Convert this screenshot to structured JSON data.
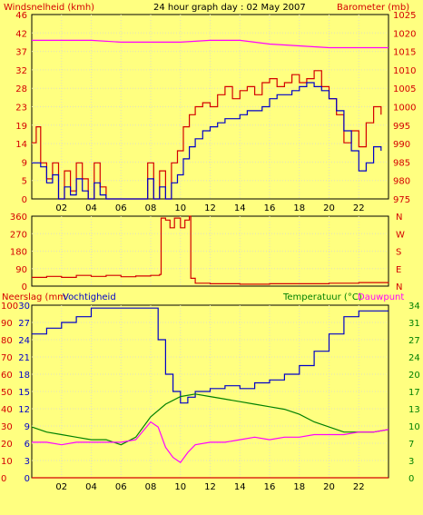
{
  "header": {
    "left_label": "Windsnelheid (kmh)",
    "title": "24 hour graph day : 02 May 2007",
    "right_label": "Barometer (mb)"
  },
  "colors": {
    "background": "#ffff80",
    "frame": "#000000",
    "grid": "#e0e0c0",
    "red": "#d40000",
    "blue": "#0000c8",
    "magenta": "#ff00ff",
    "green": "#008000",
    "frame_bg": "#ffff80"
  },
  "chart_data": [
    {
      "type": "line",
      "title": "24 hour graph day : 02 May 2007",
      "x_tick_labels": [
        "02",
        "04",
        "06",
        "08",
        "10",
        "12",
        "14",
        "16",
        "18",
        "20",
        "22"
      ],
      "x_range_hours": [
        0,
        24
      ],
      "grid": true,
      "left_axis": {
        "label": "Windsnelheid (kmh)",
        "ticks": [
          "0",
          "5",
          "9",
          "14",
          "19",
          "23",
          "28",
          "32",
          "37",
          "42",
          "46"
        ],
        "range": [
          0,
          46
        ]
      },
      "right_axis": {
        "label": "Barometer (mb)",
        "ticks": [
          "975",
          "980",
          "985",
          "990",
          "995",
          "1000",
          "1005",
          "1010",
          "1015",
          "1020",
          "1025"
        ],
        "range": [
          975,
          1025
        ]
      },
      "series": [
        {
          "axis": "left",
          "color": "#d40000",
          "x": [
            0,
            0.3,
            0.6,
            1,
            1.4,
            1.8,
            2.2,
            2.6,
            3,
            3.4,
            3.8,
            4.2,
            4.6,
            5,
            5.4,
            5.8,
            6.2,
            6.6,
            7,
            7.4,
            7.8,
            8.2,
            8.6,
            9,
            9.4,
            9.8,
            10.2,
            10.6,
            11,
            11.5,
            12,
            12.5,
            13,
            13.5,
            14,
            14.5,
            15,
            15.5,
            16,
            16.5,
            17,
            17.5,
            18,
            18.5,
            19,
            19.5,
            20,
            20.5,
            21,
            21.5,
            22,
            22.5,
            23,
            23.5
          ],
          "values": [
            14,
            18,
            9,
            5,
            9,
            0,
            7,
            2,
            9,
            5,
            0,
            9,
            3,
            0,
            0,
            0,
            0,
            0,
            0,
            0,
            9,
            0,
            7,
            0,
            9,
            12,
            18,
            21,
            23,
            24,
            23,
            26,
            28,
            25,
            27,
            28,
            26,
            29,
            30,
            28,
            29,
            31,
            29,
            30,
            32,
            28,
            25,
            21,
            14,
            17,
            13,
            19,
            23,
            21
          ]
        },
        {
          "axis": "left",
          "color": "#0000c8",
          "x": [
            0,
            0.3,
            0.6,
            1,
            1.4,
            1.8,
            2.2,
            2.6,
            3,
            3.4,
            3.8,
            4.2,
            4.6,
            5,
            5.4,
            5.8,
            6.2,
            6.6,
            7,
            7.4,
            7.8,
            8.2,
            8.6,
            9,
            9.4,
            9.8,
            10.2,
            10.6,
            11,
            11.5,
            12,
            12.5,
            13,
            13.5,
            14,
            14.5,
            15,
            15.5,
            16,
            16.5,
            17,
            17.5,
            18,
            18.5,
            19,
            19.5,
            20,
            20.5,
            21,
            21.5,
            22,
            22.5,
            23,
            23.5
          ],
          "values": [
            9,
            9,
            8,
            4,
            6,
            0,
            3,
            1,
            5,
            2,
            0,
            4,
            1,
            0,
            0,
            0,
            0,
            0,
            0,
            0,
            5,
            0,
            3,
            0,
            4,
            6,
            10,
            13,
            15,
            17,
            18,
            19,
            20,
            20,
            21,
            22,
            22,
            23,
            25,
            26,
            26,
            27,
            28,
            29,
            28,
            27,
            25,
            22,
            17,
            12,
            7,
            9,
            13,
            12
          ]
        },
        {
          "axis": "right",
          "color": "#ff00ff",
          "x": [
            0,
            2,
            4,
            6,
            8,
            10,
            12,
            14,
            16,
            18,
            20,
            22,
            24
          ],
          "values": [
            1018,
            1018,
            1018,
            1017.5,
            1017.5,
            1017.5,
            1018,
            1018,
            1017,
            1016.5,
            1016,
            1016,
            1016
          ]
        }
      ]
    },
    {
      "type": "line",
      "right_axis": {
        "label": "N W S E N",
        "letters": [
          "N",
          "W",
          "S",
          "E",
          "N"
        ]
      },
      "left_axis": {
        "ticks": [
          "360",
          "270",
          "180",
          "90",
          "0"
        ],
        "range": [
          0,
          360
        ]
      },
      "series": [
        {
          "name": "",
          "color": "#d40000",
          "x": [
            0,
            1,
            2,
            3,
            4,
            5,
            6,
            7,
            8,
            8.6,
            8.7,
            9,
            9.3,
            9.6,
            10,
            10.3,
            10.6,
            10.7,
            11,
            12,
            14,
            16,
            18,
            20,
            22,
            24
          ],
          "values": [
            45,
            50,
            45,
            55,
            50,
            55,
            48,
            52,
            55,
            60,
            350,
            340,
            300,
            350,
            300,
            340,
            360,
            40,
            15,
            12,
            10,
            12,
            12,
            15,
            18,
            20
          ]
        }
      ]
    },
    {
      "type": "line",
      "header_left": "Neerslag (mm",
      "header_left2": "Vochtigheid",
      "header_right": "Temperatuur (°C)",
      "header_right2": "Dauwpunt",
      "left_axis_outer": {
        "label": "Neerslag (mm)",
        "ticks": [
          "100",
          "90",
          "80",
          "70",
          "60",
          "50",
          "40",
          "30",
          "20",
          "10",
          "0"
        ],
        "range": [
          0,
          100
        ]
      },
      "left_axis_inner": {
        "label": "Vochtigheid",
        "ticks": [
          "30",
          "27",
          "24",
          "21",
          "18",
          "15",
          "12",
          "9",
          "6",
          "3",
          "0"
        ],
        "range": [
          0,
          30
        ]
      },
      "right_axis": {
        "label": "Temperatuur (°C)",
        "ticks": [
          "34",
          "31",
          "27",
          "24",
          "20",
          "17",
          "13",
          "10",
          "7",
          "3",
          "0"
        ],
        "range": [
          0,
          34
        ]
      },
      "series": [
        {
          "name": "",
          "color": "#0000c8",
          "axis": "inner",
          "x": [
            0,
            1,
            2,
            3,
            4,
            5,
            6,
            7,
            8,
            8.5,
            9,
            9.5,
            10,
            10.5,
            11,
            12,
            13,
            14,
            15,
            16,
            17,
            18,
            19,
            20,
            21,
            22,
            23,
            24
          ],
          "values": [
            25,
            26,
            27,
            28,
            29.5,
            29.5,
            29.5,
            29.5,
            29.5,
            24,
            18,
            15,
            13,
            14,
            15,
            15.5,
            16,
            15.5,
            16.5,
            17,
            18,
            19.5,
            22,
            25,
            28,
            29,
            29,
            29
          ]
        },
        {
          "name": "",
          "color": "#008000",
          "axis": "right",
          "x": [
            0,
            1,
            2,
            3,
            4,
            5,
            6,
            7,
            8,
            9,
            10,
            11,
            12,
            13,
            14,
            15,
            16,
            17,
            18,
            19,
            20,
            21,
            22,
            23,
            24
          ],
          "values": [
            10,
            9,
            8.5,
            8,
            7.5,
            7.5,
            6.5,
            8,
            12,
            14.5,
            16,
            16.5,
            16,
            15.5,
            15,
            14.5,
            14,
            13.5,
            12.5,
            11,
            10,
            9,
            9,
            9,
            9.5
          ]
        },
        {
          "name": "",
          "color": "#ff00ff",
          "axis": "right",
          "x": [
            0,
            1,
            2,
            3,
            4,
            5,
            6,
            7,
            8,
            8.5,
            9,
            9.5,
            10,
            10.5,
            11,
            12,
            13,
            14,
            15,
            16,
            17,
            18,
            19,
            20,
            21,
            22,
            23,
            24
          ],
          "values": [
            7,
            7,
            6.5,
            7,
            7,
            7,
            7,
            7.5,
            11,
            10,
            6,
            4,
            3,
            5,
            6.5,
            7,
            7,
            7.5,
            8,
            7.5,
            8,
            8,
            8.5,
            8.5,
            8.5,
            9,
            9,
            9.5
          ]
        },
        {
          "name": "",
          "color": "#d40000",
          "axis": "outer",
          "x": [
            0,
            24
          ],
          "values": [
            0,
            0
          ]
        }
      ]
    }
  ]
}
